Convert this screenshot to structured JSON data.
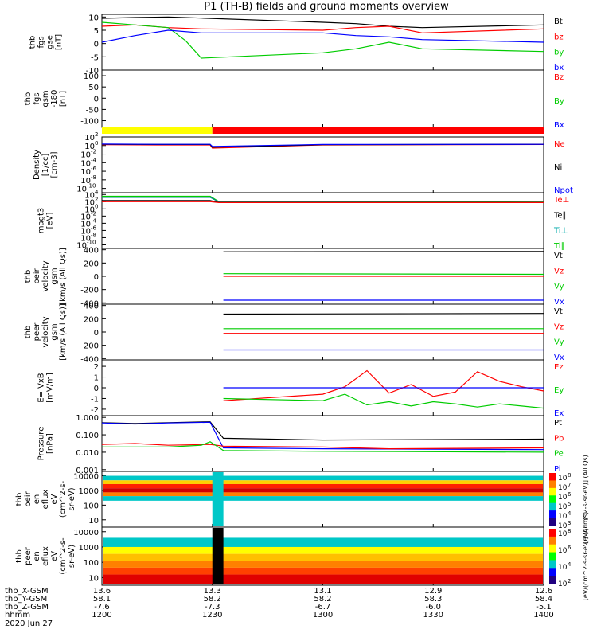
{
  "title": "P1 (TH-B) fields and ground moments overview",
  "chart_data": [
    {
      "type": "line",
      "id": "fgs-gse",
      "ylabel": [
        "thb",
        "fgs",
        "gse",
        "[nT]"
      ],
      "yticks": [
        10,
        5,
        0,
        -5,
        -10
      ],
      "ylim": [
        -10,
        11
      ],
      "legend": [
        "Bt",
        "bz",
        "by",
        "bx"
      ],
      "series": [
        {
          "name": "Bt",
          "color": "#000000",
          "x": [
            1200,
            1215,
            1230,
            1245,
            1300,
            1315,
            1330,
            1345,
            1400
          ],
          "y": [
            9.5,
            9.8,
            10.0,
            9.6,
            8.0,
            7.5,
            6.5,
            6.0,
            7.0
          ]
        },
        {
          "name": "bz",
          "color": "#ff0000",
          "x": [
            1200,
            1215,
            1230,
            1245,
            1300,
            1315,
            1330,
            1345,
            1400
          ],
          "y": [
            6.5,
            7.0,
            6.0,
            5.5,
            5.0,
            6.0,
            6.5,
            4.0,
            5.5
          ]
        },
        {
          "name": "by",
          "color": "#00cc00",
          "x": [
            1200,
            1215,
            1230,
            1238,
            1245,
            1300,
            1315,
            1330,
            1345,
            1400
          ],
          "y": [
            8.0,
            7.0,
            6.0,
            1.0,
            -5.5,
            -3.5,
            -2.0,
            0.5,
            -2.0,
            -3.0
          ]
        },
        {
          "name": "bx",
          "color": "#0000ff",
          "x": [
            1200,
            1215,
            1230,
            1245,
            1300,
            1315,
            1330,
            1345,
            1400
          ],
          "y": [
            0.5,
            3.0,
            5.0,
            4.0,
            4.0,
            3.0,
            2.5,
            1.5,
            0.5
          ]
        }
      ]
    },
    {
      "type": "line",
      "id": "fgs-gsm",
      "ylabel": [
        "thb",
        "fgs",
        "gsm",
        "-180",
        "[nT]"
      ],
      "yticks": [
        100,
        50,
        0,
        -50,
        -100
      ],
      "ylim": [
        -130,
        125
      ],
      "legend": [
        "Bz",
        "By",
        "Bx"
      ],
      "series": []
    },
    {
      "type": "bar",
      "id": "mode-bar",
      "segments": [
        {
          "x0": 1200,
          "x1": 1250,
          "color": "#ffff00"
        },
        {
          "x0": 1250,
          "x1": 1400,
          "color": "#ff0000"
        }
      ]
    },
    {
      "type": "line",
      "id": "density",
      "ylabel": [
        "Density",
        "[1/cc]",
        "[cm-3]"
      ],
      "yticks": [
        "10^2",
        "10^0",
        "10^-2",
        "10^-4",
        "10^-6",
        "10^-8",
        "10^-10"
      ],
      "ylim": [
        -11,
        2
      ],
      "log": true,
      "legend": [
        "Ne",
        "Ni",
        "Npot"
      ],
      "series": [
        {
          "name": "Ne",
          "color": "#ff0000",
          "x": [
            1200,
            1225,
            1249,
            1250,
            1300,
            1400
          ],
          "y": [
            0.2,
            0.15,
            0.15,
            -0.6,
            0.15,
            0.25
          ]
        },
        {
          "name": "Ni",
          "color": "#000000",
          "x": [
            1200,
            1225,
            1249,
            1250,
            1300,
            1400
          ],
          "y": [
            0.3,
            0.25,
            0.25,
            -0.4,
            0.2,
            0.3
          ]
        },
        {
          "name": "Npot",
          "color": "#0000ff",
          "x": [
            1200,
            1225,
            1249,
            1250,
            1300,
            1400
          ],
          "y": [
            0.35,
            0.3,
            0.3,
            -0.2,
            0.25,
            0.3
          ]
        }
      ]
    },
    {
      "type": "line",
      "id": "temperature",
      "ylabel": [
        "magt3",
        "[eV]"
      ],
      "yticks": [
        "10^4",
        "10^2",
        "10^0",
        "10^-2",
        "10^-4",
        "10^-6",
        "10^-8",
        "10^-10"
      ],
      "ylim": [
        -11,
        4.5
      ],
      "log": true,
      "legend": [
        "Te⊥",
        "Te∥",
        "Ti⊥",
        "Ti∥"
      ],
      "series": [
        {
          "name": "Ti∥",
          "color": "#00cc00",
          "x": [
            1200,
            1249,
            1253,
            1400
          ],
          "y": [
            3.5,
            3.5,
            2.0,
            1.9
          ]
        },
        {
          "name": "Ti⊥",
          "color": "#008888",
          "x": [
            1200,
            1249,
            1253,
            1400
          ],
          "y": [
            3.2,
            3.2,
            1.9,
            1.85
          ]
        },
        {
          "name": "Te∥",
          "color": "#000000",
          "x": [
            1200,
            1249,
            1253,
            1400
          ],
          "y": [
            2.3,
            2.3,
            1.8,
            1.8
          ]
        },
        {
          "name": "Te⊥",
          "color": "#ff0000",
          "x": [
            1200,
            1249,
            1253,
            1400
          ],
          "y": [
            2.0,
            2.0,
            1.75,
            1.75
          ]
        }
      ]
    },
    {
      "type": "line",
      "id": "peir-velocity",
      "ylabel": [
        "thb",
        "peir",
        "velocity",
        "gsm",
        "[km/s (All Qs)]"
      ],
      "yticks": [
        400,
        200,
        0,
        -200,
        -400
      ],
      "ylim": [
        -420,
        420
      ],
      "legend": [
        "Vt",
        "Vz",
        "Vy",
        "Vx"
      ],
      "series": [
        {
          "name": "Vt",
          "color": "#000000",
          "x": [
            1255,
            1400
          ],
          "y": [
            370,
            375
          ]
        },
        {
          "name": "Vz",
          "color": "#ff0000",
          "x": [
            1255,
            1400
          ],
          "y": [
            0,
            0
          ]
        },
        {
          "name": "Vy",
          "color": "#00cc00",
          "x": [
            1255,
            1400
          ],
          "y": [
            40,
            30
          ]
        },
        {
          "name": "Vx",
          "color": "#0000ff",
          "x": [
            1255,
            1400
          ],
          "y": [
            -360,
            -360
          ]
        }
      ]
    },
    {
      "type": "line",
      "id": "peer-velocity",
      "ylabel": [
        "thb",
        "peer",
        "velocity",
        "gsm",
        "[km/s (All Qs)]"
      ],
      "yticks": [
        400,
        200,
        0,
        -200,
        -400
      ],
      "ylim": [
        -420,
        420
      ],
      "legend": [
        "Vt",
        "Vz",
        "Vy",
        "Vx"
      ],
      "series": [
        {
          "name": "Vt",
          "color": "#000000",
          "x": [
            1255,
            1400
          ],
          "y": [
            270,
            280
          ]
        },
        {
          "name": "Vz",
          "color": "#ff0000",
          "x": [
            1255,
            1400
          ],
          "y": [
            -20,
            -20
          ]
        },
        {
          "name": "Vy",
          "color": "#00cc00",
          "x": [
            1255,
            1400
          ],
          "y": [
            50,
            50
          ]
        },
        {
          "name": "Vx",
          "color": "#0000ff",
          "x": [
            1255,
            1400
          ],
          "y": [
            -270,
            -270
          ]
        }
      ]
    },
    {
      "type": "line",
      "id": "efield",
      "ylabel": [
        "E=-VxB",
        "[mV/m]"
      ],
      "yticks": [
        2,
        1,
        0,
        -1,
        -2
      ],
      "ylim": [
        -2.6,
        2.6
      ],
      "legend": [
        "Ez",
        "Ey",
        "Ex"
      ],
      "series": [
        {
          "name": "Ez",
          "color": "#ff0000",
          "x": [
            1255,
            1300,
            1310,
            1320,
            1330,
            1340,
            1350,
            1360,
            1370,
            1380,
            1390,
            1400
          ],
          "y": [
            -1.2,
            -0.6,
            0.1,
            1.6,
            -0.5,
            0.3,
            -0.8,
            -0.4,
            1.5,
            0.6,
            0.1,
            -0.3
          ]
        },
        {
          "name": "Ey",
          "color": "#0000ff",
          "x": [
            1255,
            1400
          ],
          "y": [
            0,
            0
          ]
        },
        {
          "name": "Ex",
          "color": "#00cc00",
          "x": [
            1255,
            1300,
            1310,
            1320,
            1330,
            1340,
            1350,
            1360,
            1370,
            1380,
            1390,
            1400
          ],
          "y": [
            -1.0,
            -1.2,
            -0.6,
            -1.6,
            -1.3,
            -1.7,
            -1.3,
            -1.5,
            -1.8,
            -1.5,
            -1.7,
            -1.9
          ]
        }
      ]
    },
    {
      "type": "line",
      "id": "pressure",
      "ylabel": [
        "Pressure",
        "[nPa]"
      ],
      "yticks": [
        "1.000",
        "0.100",
        "0.010",
        "0.001"
      ],
      "ylim": [
        -3.1,
        0.1
      ],
      "log": true,
      "legend": [
        "Pt",
        "Pb",
        "Pe",
        "Pi"
      ],
      "series": [
        {
          "name": "Pt",
          "color": "#000000",
          "x": [
            1200,
            1215,
            1230,
            1249,
            1255,
            1300,
            1400
          ],
          "y": [
            -0.3,
            -0.35,
            -0.3,
            -0.25,
            -1.2,
            -1.3,
            -1.25
          ]
        },
        {
          "name": "Pi",
          "color": "#0000ff",
          "x": [
            1200,
            1215,
            1230,
            1249,
            1255,
            1300,
            1400
          ],
          "y": [
            -0.32,
            -0.38,
            -0.32,
            -0.28,
            -1.75,
            -1.8,
            -1.85
          ]
        },
        {
          "name": "Pb",
          "color": "#ff0000",
          "x": [
            1200,
            1215,
            1230,
            1249,
            1255,
            1300,
            1330,
            1400
          ],
          "y": [
            -1.55,
            -1.5,
            -1.6,
            -1.55,
            -1.65,
            -1.7,
            -1.8,
            -1.75
          ]
        },
        {
          "name": "Pe",
          "color": "#00cc00",
          "x": [
            1200,
            1230,
            1245,
            1249,
            1255,
            1300,
            1400
          ],
          "y": [
            -1.7,
            -1.7,
            -1.6,
            -1.4,
            -1.9,
            -1.95,
            -2.0
          ]
        }
      ]
    },
    {
      "type": "heatmap",
      "id": "peir-eflux",
      "ylabel": [
        "thb",
        "peir",
        "en",
        "eflux",
        "eV",
        "(cm^2-s-",
        "sr-eV)"
      ],
      "yticks": [
        10000,
        1000,
        100,
        10
      ],
      "ylim": [
        0.5,
        4.3
      ],
      "log": true,
      "colorbar": {
        "label": "[eV/(cm^2-s-sr-eV)] (All Qs)",
        "ticks": [
          "10^8",
          "10^7",
          "10^6",
          "10^5",
          "10^4",
          "10^3"
        ]
      }
    },
    {
      "type": "heatmap",
      "id": "peer-eflux",
      "ylabel": [
        "thb",
        "peer",
        "en",
        "eflux",
        "eV",
        "(cm^2-s-",
        "sr-eV)"
      ],
      "yticks": [
        10000,
        1000,
        100,
        10
      ],
      "ylim": [
        0.5,
        4.3
      ],
      "log": true,
      "colorbar": {
        "label": "[eV/(cm^2-s-sr-eV)] (All Qs)",
        "ticks": [
          "10^8",
          "10^6",
          "10^4",
          "10^2"
        ]
      }
    }
  ],
  "time_axis": {
    "range": [
      1200,
      1400
    ],
    "rows": [
      {
        "label": "thb_X-GSM",
        "values": [
          "13.6",
          "13.3",
          "13.1",
          "12.9",
          "12.6"
        ]
      },
      {
        "label": "thb_Y-GSM",
        "values": [
          "58.1",
          "58.2",
          "58.2",
          "58.3",
          "58.4"
        ]
      },
      {
        "label": "thb_Z-GSM",
        "values": [
          "-7.6",
          "-7.3",
          "-6.7",
          "-6.0",
          "-5.1"
        ]
      },
      {
        "label": "hhmm",
        "values": [
          "1200",
          "1230",
          "1300",
          "1330",
          "1400"
        ]
      }
    ],
    "date": "2020 Jun 27"
  }
}
